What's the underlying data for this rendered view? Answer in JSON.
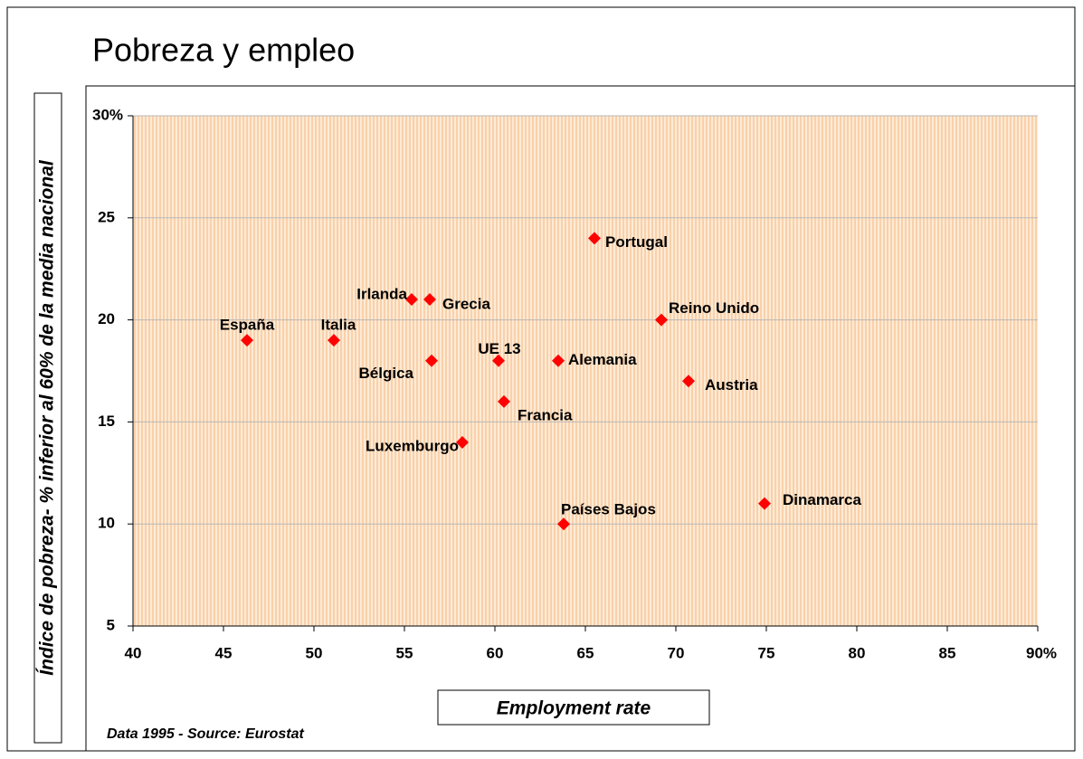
{
  "chart_data": {
    "type": "scatter",
    "title": "Pobreza y empleo",
    "x_label": "Employment rate",
    "y_label": "Índice de pobreza- % inferior al 60% de la media nacional",
    "source": "Data 1995 - Source: Eurostat",
    "color": "#ff0000",
    "labels": [
      "España",
      "Italia",
      "Irlanda",
      "Grecia",
      "Bélgica",
      "UE 13",
      "Francia",
      "Luxemburgo",
      "Alemania",
      "Portugal",
      "Reino Unido",
      "Austria",
      "Países Bajos",
      "Dinamarca"
    ],
    "x": [
      46.3,
      51.1,
      55.4,
      56.4,
      56.5,
      60.2,
      60.5,
      58.2,
      63.5,
      65.5,
      69.2,
      70.7,
      63.8,
      74.9
    ],
    "values": [
      19,
      19,
      21,
      21,
      18,
      18,
      16,
      14,
      18,
      24,
      20,
      17,
      10,
      11
    ],
    "xlim": [
      40,
      90
    ],
    "xticks": [
      40,
      45,
      50,
      55,
      60,
      65,
      70,
      75,
      80,
      85,
      {
        "value": 90,
        "label": "90%"
      }
    ],
    "ylim": [
      5,
      30
    ],
    "yticks": [
      5,
      10,
      15,
      20,
      25,
      {
        "value": 30,
        "label": "30%"
      }
    ],
    "grid": true
  }
}
